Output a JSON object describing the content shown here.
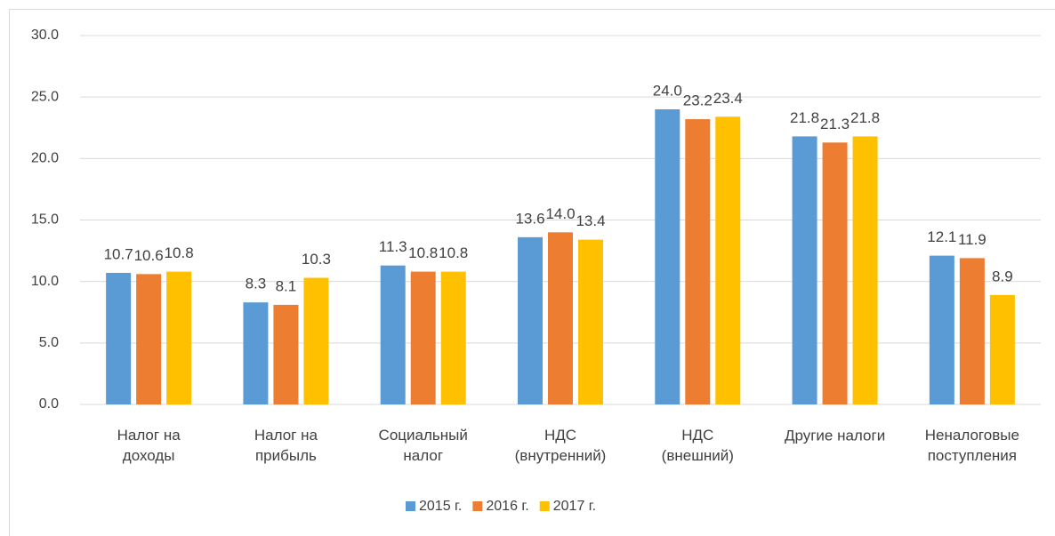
{
  "chart_data": {
    "type": "bar",
    "categories": [
      "Налог на\nдоходы",
      "Налог на\nприбыль",
      "Социальный\nналог",
      "НДС\n(внутренний)",
      "НДС\n(внешний)",
      "Другие налоги",
      "Неналоговые\nпоступления"
    ],
    "series": [
      {
        "name": "2015 г.",
        "color": "#5b9bd5",
        "values": [
          10.7,
          8.3,
          11.3,
          13.6,
          24.0,
          21.8,
          12.1
        ],
        "value_labels": [
          "10.7",
          "8.3",
          "11.3",
          "13.6",
          "24.0",
          "21.8",
          "12.1"
        ]
      },
      {
        "name": "2016 г.",
        "color": "#ed7d31",
        "values": [
          10.6,
          8.1,
          10.8,
          14.0,
          23.2,
          21.3,
          11.9
        ],
        "value_labels": [
          "10.6",
          "8.1",
          "10.8",
          "14.0",
          "23.2",
          "21.3",
          "11.9"
        ]
      },
      {
        "name": "2017 г.",
        "color": "#ffc000",
        "values": [
          10.8,
          10.3,
          10.8,
          13.4,
          23.4,
          21.8,
          8.9
        ],
        "value_labels": [
          "10.8",
          "10.3",
          "10.8",
          "13.4",
          "23.4",
          "21.8",
          "8.9"
        ]
      }
    ],
    "ylim": [
      0,
      30
    ],
    "yticks": [
      {
        "value": 0,
        "label": "0.0"
      },
      {
        "value": 5,
        "label": "5.0"
      },
      {
        "value": 10,
        "label": "10.0"
      },
      {
        "value": 15,
        "label": "15.0"
      },
      {
        "value": 20,
        "label": "20.0"
      },
      {
        "value": 25,
        "label": "25.0"
      },
      {
        "value": 30,
        "label": "30.0"
      }
    ],
    "grid": true,
    "legend": "bottom"
  }
}
